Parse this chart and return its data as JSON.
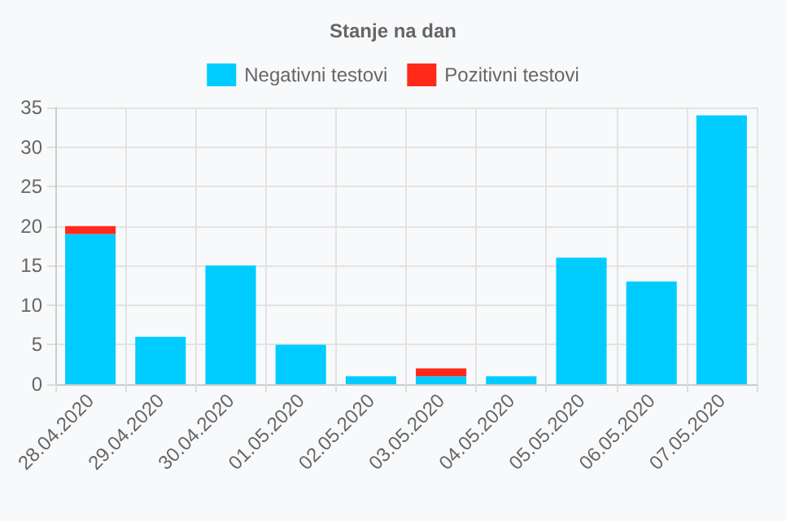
{
  "chart_data": {
    "type": "bar",
    "title": "Stanje na dan",
    "stacked": true,
    "categories": [
      "28.04.2020",
      "29.04.2020",
      "30.04.2020",
      "01.05.2020",
      "02.05.2020",
      "03.05.2020",
      "04.05.2020",
      "05.05.2020",
      "06.05.2020",
      "07.05.2020"
    ],
    "series": [
      {
        "name": "Negativni testovi",
        "color": "#00ccff",
        "values": [
          19,
          6,
          15,
          5,
          1,
          1,
          1,
          16,
          13,
          34
        ]
      },
      {
        "name": "Pozitivni testovi",
        "color": "#ff2a1a",
        "values": [
          1,
          0,
          0,
          0,
          0,
          1,
          0,
          0,
          0,
          0
        ]
      }
    ],
    "ylim": [
      0,
      35
    ],
    "yticks": [
      0,
      5,
      10,
      15,
      20,
      25,
      30,
      35
    ],
    "grid": true,
    "legend": "top"
  }
}
